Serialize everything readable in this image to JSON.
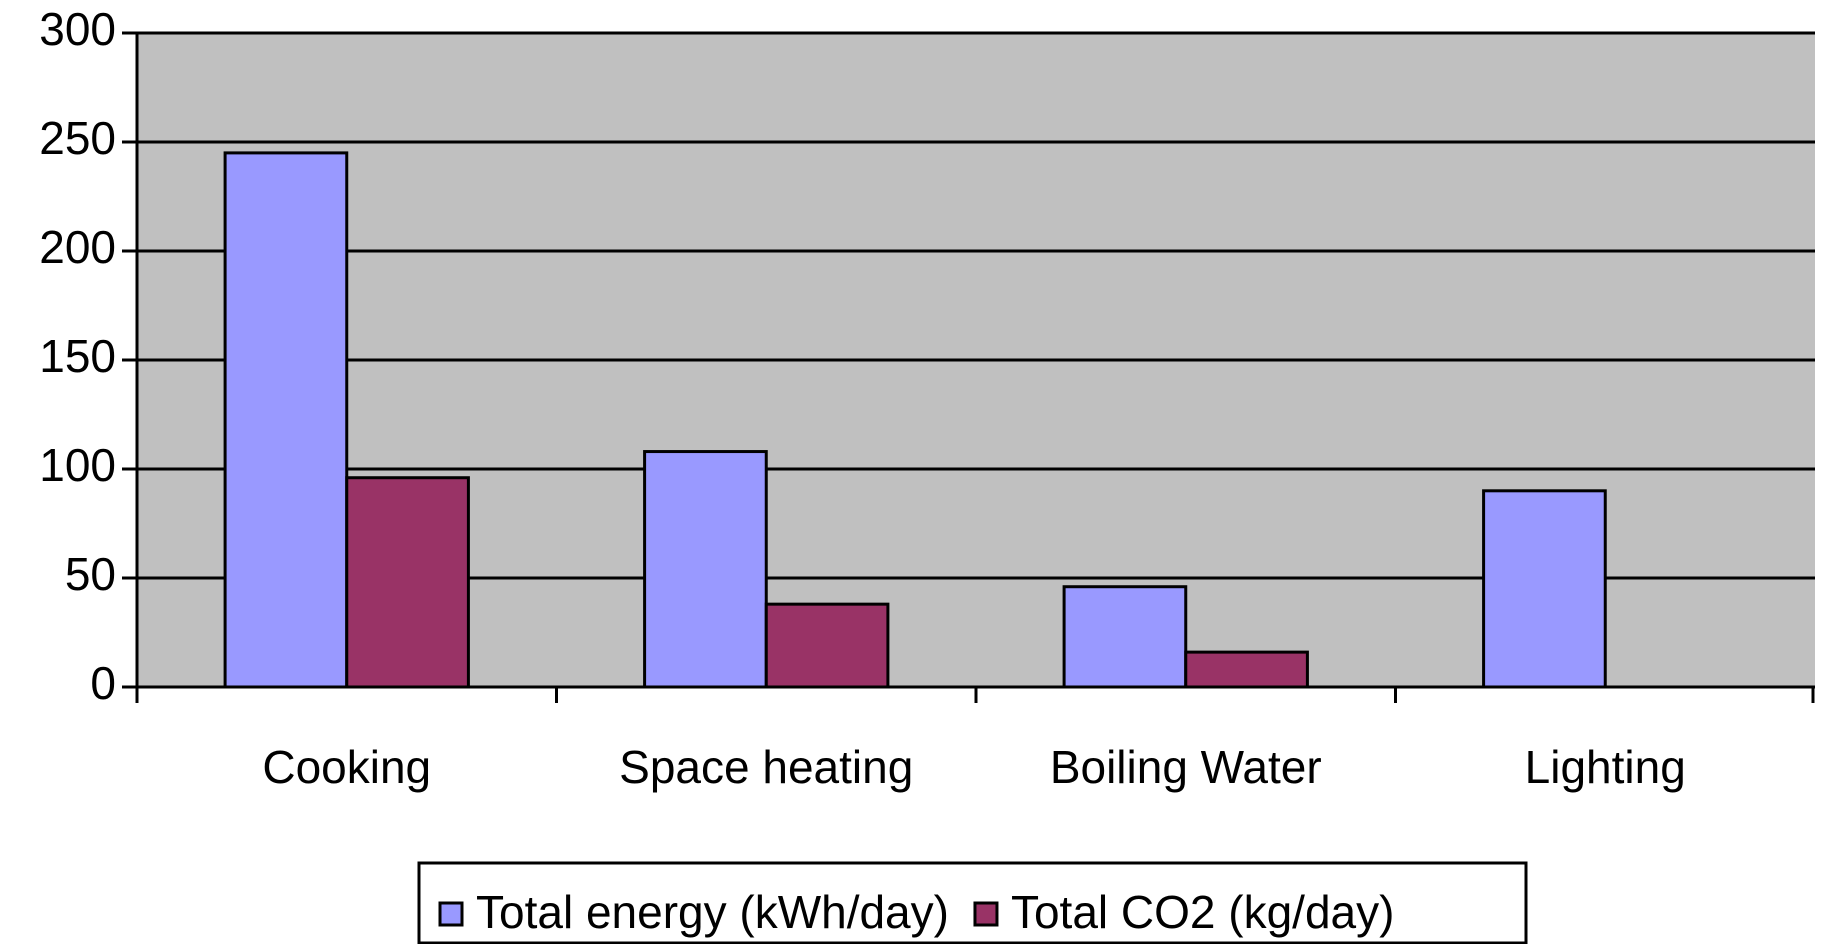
{
  "chart_data": {
    "type": "bar",
    "categories": [
      "Cooking",
      "Space heating",
      "Boiling Water",
      "Lighting"
    ],
    "series": [
      {
        "name": "Total energy (kWh/day)",
        "color": "#9999ff",
        "values": [
          245,
          108,
          46,
          90
        ]
      },
      {
        "name": "Total CO2 (kg/day)",
        "color": "#993366",
        "values": [
          96,
          38,
          16,
          0
        ]
      }
    ],
    "ylim": [
      0,
      300
    ],
    "yticks": [
      0,
      50,
      100,
      150,
      200,
      250,
      300
    ],
    "grid": true,
    "legend": "bottom",
    "plot_background": "#c0c0c0"
  }
}
